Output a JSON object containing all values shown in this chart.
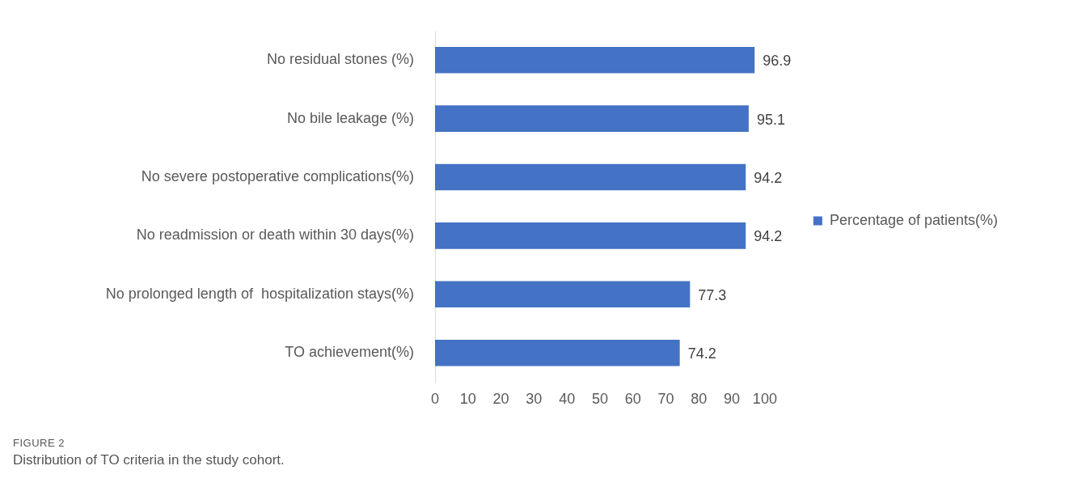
{
  "chart_data": {
    "type": "bar",
    "orientation": "horizontal",
    "categories": [
      "No residual stones (%)",
      "No bile leakage (%)",
      "No severe postoperative complications(%)",
      "No readmission or death within 30 days(%)",
      "No prolonged length of  hospitalization stays(%)",
      "TO achievement(%)"
    ],
    "series": [
      {
        "name": "Percentage of patients(%)",
        "color": "#4472c4",
        "values": [
          96.9,
          95.1,
          94.2,
          94.2,
          77.3,
          74.2
        ]
      }
    ],
    "xlim": [
      0,
      100
    ],
    "xticks": [
      0,
      10,
      20,
      30,
      40,
      50,
      60,
      70,
      80,
      90,
      100
    ],
    "grid": false,
    "legend": "right",
    "data_labels": true,
    "annotations": [
      "FIGURE 2",
      "Distribution of TO criteria in the study cohort."
    ]
  }
}
